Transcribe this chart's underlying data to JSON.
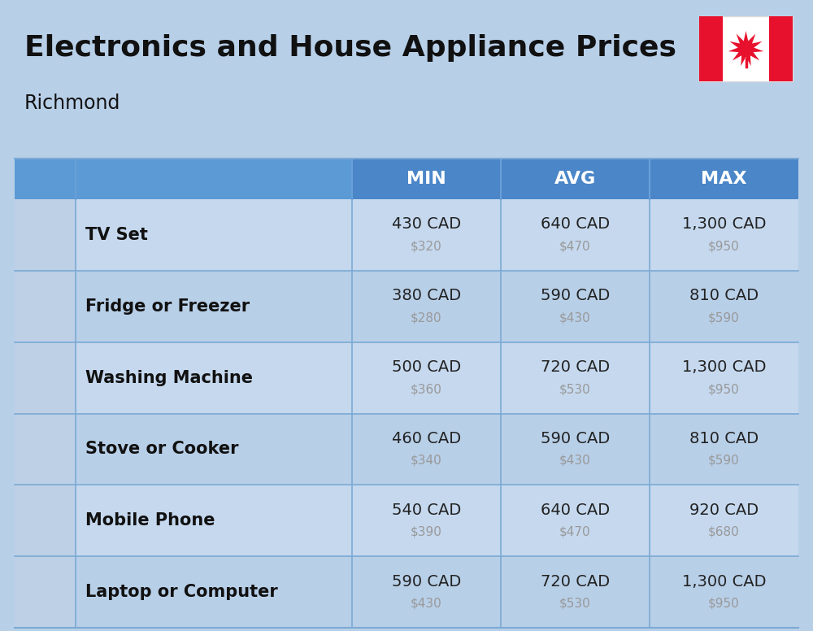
{
  "title": "Electronics and House Appliance Prices",
  "subtitle": "Richmond",
  "bg_color": "#b8cfe8",
  "header_bg": "#4a86c8",
  "header_bg2": "#5b9ad5",
  "header_text_color": "#ffffff",
  "header_labels": [
    "MIN",
    "AVG",
    "MAX"
  ],
  "row_bg_light": "#c5d8ee",
  "row_bg_dark": "#b8cfe8",
  "divider_color": "#7baad4",
  "name_color": "#111111",
  "cad_color": "#222222",
  "usd_color": "#999999",
  "items": [
    {
      "name": "TV Set",
      "min_cad": "430 CAD",
      "min_usd": "$320",
      "avg_cad": "640 CAD",
      "avg_usd": "$470",
      "max_cad": "1,300 CAD",
      "max_usd": "$950"
    },
    {
      "name": "Fridge or Freezer",
      "min_cad": "380 CAD",
      "min_usd": "$280",
      "avg_cad": "590 CAD",
      "avg_usd": "$430",
      "max_cad": "810 CAD",
      "max_usd": "$590"
    },
    {
      "name": "Washing Machine",
      "min_cad": "500 CAD",
      "min_usd": "$360",
      "avg_cad": "720 CAD",
      "avg_usd": "$530",
      "max_cad": "1,300 CAD",
      "max_usd": "$950"
    },
    {
      "name": "Stove or Cooker",
      "min_cad": "460 CAD",
      "min_usd": "$340",
      "avg_cad": "590 CAD",
      "avg_usd": "$430",
      "max_cad": "810 CAD",
      "max_usd": "$590"
    },
    {
      "name": "Mobile Phone",
      "min_cad": "540 CAD",
      "min_usd": "$390",
      "avg_cad": "640 CAD",
      "avg_usd": "$470",
      "max_cad": "920 CAD",
      "max_usd": "$680"
    },
    {
      "name": "Laptop or Computer",
      "min_cad": "590 CAD",
      "min_usd": "$430",
      "avg_cad": "720 CAD",
      "avg_usd": "$530",
      "max_cad": "1,300 CAD",
      "max_usd": "$950"
    }
  ]
}
